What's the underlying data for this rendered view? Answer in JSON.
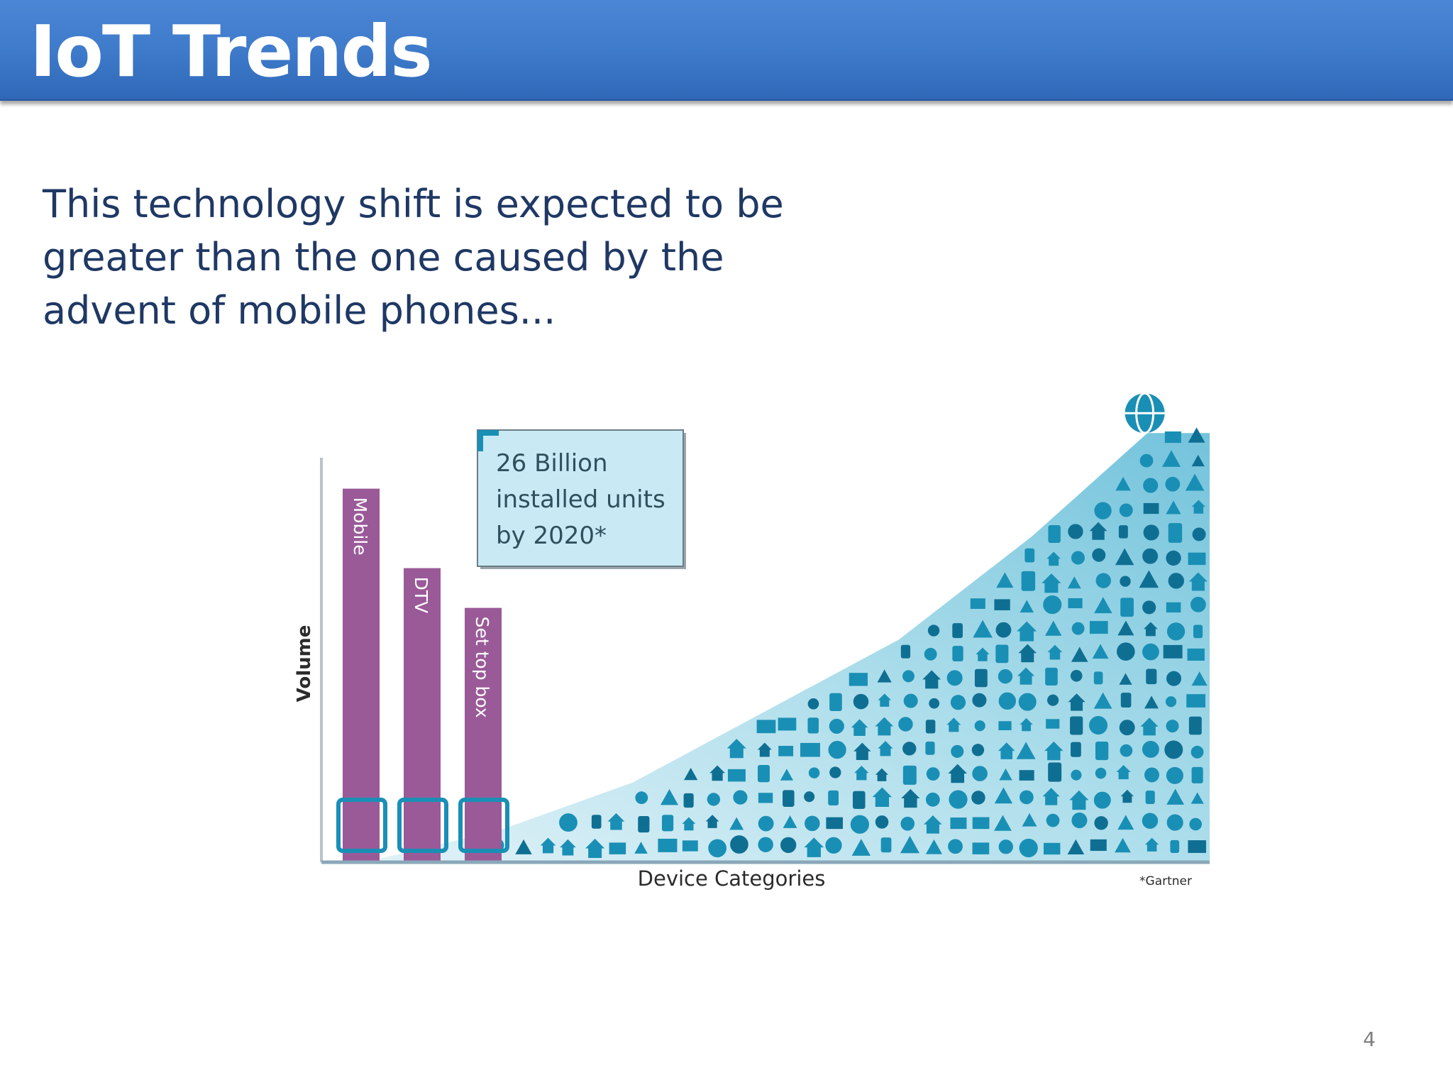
{
  "slide": {
    "title": "IoT Trends",
    "body_text": "This technology shift is expected to be greater than the one caused by the advent of mobile phones...",
    "page_number": "4"
  },
  "chart_data": {
    "type": "bar",
    "xlabel": "Device Categories",
    "ylabel": "Volume",
    "categories": [
      "Mobile",
      "DTV",
      "Set top box"
    ],
    "values": [
      0.94,
      0.74,
      0.64
    ],
    "value_scale": "relative height of bar, 0-1 of axis",
    "long_tail_area": {
      "description_icons": [
        "globe",
        "cloud",
        "car",
        "bicycle",
        "house",
        "washing-machine",
        "kite",
        "umbrella",
        "shopping-basket",
        "clock",
        "headphones",
        "camera",
        "lightbulb",
        "robot",
        "airplane",
        "refrigerator",
        "heart",
        "dollar-sign",
        "package-box",
        "watch"
      ],
      "curve": [
        [
          0.2,
          0.08
        ],
        [
          0.35,
          0.2
        ],
        [
          0.5,
          0.38
        ],
        [
          0.65,
          0.56
        ],
        [
          0.8,
          0.82
        ],
        [
          0.93,
          1.08
        ]
      ]
    },
    "annotation": "26 Billion installed units by 2020*",
    "source_note": "*Gartner",
    "colors": {
      "bar": "#9a5a98",
      "icons": "#1a8fb5",
      "icons_dark": "#0f6f93",
      "area_light": "#c7e7f1",
      "area_mid": "#8ccee3",
      "annotation_fill": "#c9eaf4",
      "annotation_border": "#6c7c86",
      "axis": "#b9c2c8",
      "text": "#2b2b2b"
    }
  }
}
